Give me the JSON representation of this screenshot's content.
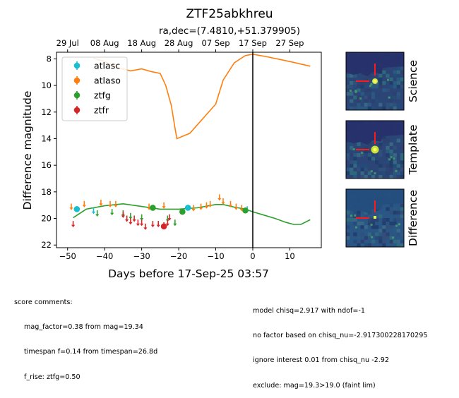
{
  "chart_data": {
    "type": "scatter",
    "title": "ZTF25abkhreu",
    "subtitle": "ra,dec=(7.4810,+51.379905)",
    "xlabel": "Days before 17-Sep-25 03:57",
    "ylabel": "Difference magnitude",
    "xlim": [
      -53,
      18.5
    ],
    "ylim": [
      22.2,
      7.5
    ],
    "y_inverted": true,
    "x_ticks": [
      -50,
      -40,
      -30,
      -20,
      -10,
      0,
      10
    ],
    "y_ticks": [
      8,
      10,
      12,
      14,
      16,
      18,
      20,
      22
    ],
    "top_axis_ticks": [
      {
        "x": -50,
        "label": "29 Jul"
      },
      {
        "x": -40,
        "label": "08 Aug"
      },
      {
        "x": -30,
        "label": "18 Aug"
      },
      {
        "x": -20,
        "label": "28 Aug"
      },
      {
        "x": -10,
        "label": "07 Sep"
      },
      {
        "x": 0,
        "label": "17 Sep"
      },
      {
        "x": 10,
        "label": "27 Sep"
      }
    ],
    "vline_x": 0,
    "grid": false,
    "legend_position": "top-left",
    "colors": {
      "atlasc": "#17becf",
      "atlaso": "#ff7f0e",
      "ztfg": "#2ca02c",
      "ztfr": "#d62728"
    },
    "series": [
      {
        "name": "atlasc",
        "color": "#17becf",
        "detections": [
          [
            -47.5,
            19.3
          ],
          [
            -17.5,
            19.2
          ]
        ],
        "upper_limits": [
          [
            -43,
            19.4
          ],
          [
            -1.5,
            19.3
          ]
        ]
      },
      {
        "name": "atlaso",
        "color": "#ff7f0e",
        "detections": [],
        "upper_limits": [
          [
            -49,
            19.1
          ],
          [
            -45.5,
            18.9
          ],
          [
            -41,
            18.8
          ],
          [
            -38.5,
            18.9
          ],
          [
            -37,
            18.9
          ],
          [
            -28,
            19.1
          ],
          [
            -24,
            19.0
          ],
          [
            -16,
            19.2
          ],
          [
            -14,
            19.1
          ],
          [
            -12.5,
            19.0
          ],
          [
            -11.5,
            18.9
          ],
          [
            -9,
            18.4
          ],
          [
            -8,
            18.7
          ],
          [
            -6,
            18.9
          ],
          [
            -4.5,
            19.1
          ],
          [
            -3,
            19.2
          ]
        ]
      },
      {
        "name": "ztfg",
        "color": "#2ca02c",
        "detections": [
          [
            -27,
            19.2
          ],
          [
            -19,
            19.5
          ],
          [
            -2,
            19.4
          ]
        ],
        "upper_limits": [
          [
            -42,
            19.6
          ],
          [
            -38,
            19.5
          ],
          [
            -35,
            19.6
          ],
          [
            -33,
            19.8
          ],
          [
            -30,
            19.9
          ],
          [
            -23,
            20.0
          ],
          [
            -21,
            20.3
          ]
        ]
      },
      {
        "name": "ztfr",
        "color": "#d62728",
        "detections": [
          [
            -24,
            20.6
          ]
        ],
        "upper_limits": [
          [
            -48.5,
            20.4
          ],
          [
            -35,
            19.7
          ],
          [
            -34,
            20.0
          ],
          [
            -33,
            20.2
          ],
          [
            -32,
            20.0
          ],
          [
            -31,
            20.3
          ],
          [
            -30,
            20.3
          ],
          [
            -29,
            20.6
          ],
          [
            -27,
            20.4
          ],
          [
            -25.5,
            20.4
          ],
          [
            -24,
            20.5
          ],
          [
            -23,
            20.3
          ],
          [
            -22.5,
            19.9
          ]
        ]
      }
    ],
    "model_curves": [
      {
        "name": "atlaso",
        "color": "#ff7f0e",
        "points": [
          [
            -43,
            7.95
          ],
          [
            -40,
            8.2
          ],
          [
            -36,
            8.7
          ],
          [
            -33,
            8.9
          ],
          [
            -30,
            8.75
          ],
          [
            -27.5,
            8.95
          ],
          [
            -25,
            9.1
          ],
          [
            -23.5,
            10.0
          ],
          [
            -22,
            11.5
          ],
          [
            -21,
            13.2
          ],
          [
            -20.5,
            14.0
          ],
          [
            -17,
            13.6
          ],
          [
            -10,
            11.4
          ],
          [
            -8,
            9.6
          ],
          [
            -5,
            8.3
          ],
          [
            -2,
            7.75
          ],
          [
            0,
            7.65
          ],
          [
            4,
            7.85
          ],
          [
            10,
            8.2
          ],
          [
            15.5,
            8.55
          ]
        ]
      },
      {
        "name": "ztfg",
        "color": "#2ca02c",
        "points": [
          [
            -48.5,
            19.95
          ],
          [
            -45,
            19.3
          ],
          [
            -40,
            19.05
          ],
          [
            -35,
            18.9
          ],
          [
            -30,
            19.1
          ],
          [
            -25,
            19.3
          ],
          [
            -20,
            19.3
          ],
          [
            -15,
            19.2
          ],
          [
            -10,
            18.95
          ],
          [
            -8,
            18.95
          ],
          [
            -5,
            19.15
          ],
          [
            -2,
            19.3
          ],
          [
            0,
            19.5
          ],
          [
            3,
            19.75
          ],
          [
            6,
            20.0
          ],
          [
            9,
            20.3
          ],
          [
            11,
            20.45
          ],
          [
            13,
            20.45
          ],
          [
            15.5,
            20.1
          ]
        ]
      }
    ]
  },
  "legend": {
    "items": [
      {
        "label": "atlasc",
        "color": "#17becf"
      },
      {
        "label": "atlaso",
        "color": "#ff7f0e"
      },
      {
        "label": "ztfg",
        "color": "#2ca02c"
      },
      {
        "label": "ztfr",
        "color": "#d62728"
      }
    ]
  },
  "thumbnails": [
    {
      "label": "Science"
    },
    {
      "label": "Template"
    },
    {
      "label": "Difference"
    }
  ],
  "comments_left": {
    "heading": "score comments:",
    "lines": [
      "mag_factor=0.38 from mag=19.34",
      "timespan f=0.14 from timespan=26.8d",
      "f_rise: ztfg=0.50"
    ]
  },
  "comments_right": {
    "lines": [
      "model chisq=2.917 with ndof=-1",
      "no factor based on chisq_nu=-2.917300228170295",
      "ignore interest 0.01 from chisq_nu -2.92",
      "exclude: mag=19.3>19.0 (faint lim)"
    ]
  }
}
